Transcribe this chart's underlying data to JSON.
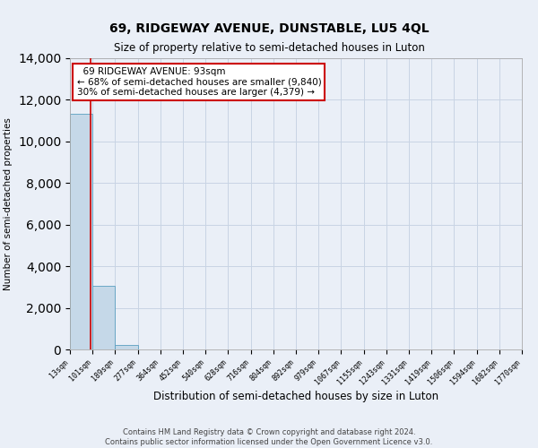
{
  "title": "69, RIDGEWAY AVENUE, DUNSTABLE, LU5 4QL",
  "subtitle": "Size of property relative to semi-detached houses in Luton",
  "xlabel": "Distribution of semi-detached houses by size in Luton",
  "ylabel": "Number of semi-detached properties",
  "property_size": 93,
  "annotation_title": "69 RIDGEWAY AVENUE: 93sqm",
  "annotation_line1": "← 68% of semi-detached houses are smaller (9,840)",
  "annotation_line2": "30% of semi-detached houses are larger (4,379) →",
  "footer_line1": "Contains HM Land Registry data © Crown copyright and database right 2024.",
  "footer_line2": "Contains public sector information licensed under the Open Government Licence v3.0.",
  "bin_edges": [
    13,
    101,
    189,
    277,
    364,
    452,
    540,
    628,
    716,
    804,
    892,
    979,
    1067,
    1155,
    1243,
    1331,
    1419,
    1506,
    1594,
    1682,
    1770
  ],
  "bin_counts": [
    11350,
    3050,
    220,
    0,
    0,
    0,
    0,
    0,
    0,
    0,
    0,
    0,
    0,
    0,
    0,
    0,
    0,
    0,
    0,
    0
  ],
  "bar_color": "#c5d8e8",
  "bar_edge_color": "#5a9fc0",
  "marker_color": "#cc0000",
  "annotation_box_color": "#ffffff",
  "annotation_box_edge": "#cc0000",
  "grid_color": "#c8d4e4",
  "background_color": "#eaeff7",
  "ylim": [
    0,
    14000
  ],
  "yticks": [
    0,
    2000,
    4000,
    6000,
    8000,
    10000,
    12000,
    14000
  ]
}
